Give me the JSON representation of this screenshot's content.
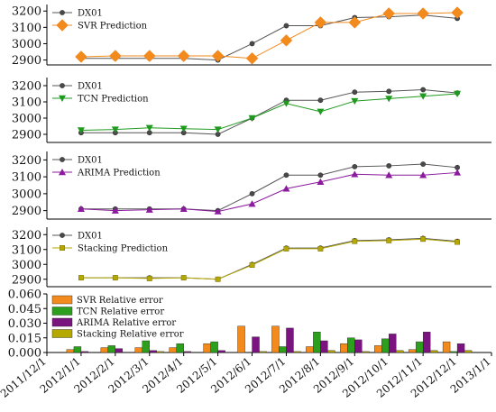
{
  "chart_data": [
    {
      "type": "line",
      "x": [
        "2012/1/1",
        "2012/2/1",
        "2012/3/1",
        "2012/4/1",
        "2012/5/1",
        "2012/6/1",
        "2012/7/1",
        "2012/8/1",
        "2012/9/1",
        "2012/10/1",
        "2012/11/1",
        "2012/12/1"
      ],
      "yticks": [
        "2900",
        "3000",
        "3100",
        "3200"
      ],
      "ylim": [
        2870,
        3240
      ],
      "series": [
        {
          "name": "DX01",
          "color": "#555555",
          "marker": "circle",
          "values": [
            2910,
            2910,
            2910,
            2910,
            2900,
            3000,
            3110,
            3110,
            3160,
            3165,
            3175,
            3155
          ]
        },
        {
          "name": "SVR Prediction",
          "color": "#f28a1e",
          "marker": "diamond",
          "values": [
            2920,
            2925,
            2925,
            2925,
            2925,
            2910,
            3020,
            3130,
            3130,
            3185,
            3185,
            3190
          ]
        }
      ]
    },
    {
      "type": "line",
      "x": [
        "2012/1/1",
        "2012/2/1",
        "2012/3/1",
        "2012/4/1",
        "2012/5/1",
        "2012/6/1",
        "2012/7/1",
        "2012/8/1",
        "2012/9/1",
        "2012/10/1",
        "2012/11/1",
        "2012/12/1"
      ],
      "yticks": [
        "2900",
        "3000",
        "3100",
        "3200"
      ],
      "ylim": [
        2850,
        3250
      ],
      "series": [
        {
          "name": "DX01",
          "color": "#555555",
          "marker": "circle",
          "values": [
            2910,
            2910,
            2910,
            2910,
            2900,
            3000,
            3110,
            3110,
            3160,
            3165,
            3175,
            3155
          ]
        },
        {
          "name": "TCN Prediction",
          "color": "#1f9a1f",
          "marker": "triangle-down",
          "values": [
            2925,
            2930,
            2940,
            2935,
            2930,
            3000,
            3090,
            3040,
            3105,
            3120,
            3135,
            3150
          ]
        }
      ]
    },
    {
      "type": "line",
      "x": [
        "2012/1/1",
        "2012/2/1",
        "2012/3/1",
        "2012/4/1",
        "2012/5/1",
        "2012/6/1",
        "2012/7/1",
        "2012/8/1",
        "2012/9/1",
        "2012/10/1",
        "2012/11/1",
        "2012/12/1"
      ],
      "yticks": [
        "2900",
        "3000",
        "3100",
        "3200"
      ],
      "ylim": [
        2850,
        3250
      ],
      "series": [
        {
          "name": "DX01",
          "color": "#555555",
          "marker": "circle",
          "values": [
            2910,
            2910,
            2910,
            2910,
            2900,
            3000,
            3110,
            3110,
            3160,
            3165,
            3175,
            3155
          ]
        },
        {
          "name": "ARIMA Prediction",
          "color": "#8b1a9e",
          "marker": "triangle-up",
          "values": [
            2910,
            2900,
            2905,
            2910,
            2895,
            2940,
            3030,
            3070,
            3115,
            3110,
            3110,
            3125
          ]
        }
      ]
    },
    {
      "type": "line",
      "x": [
        "2012/1/1",
        "2012/2/1",
        "2012/3/1",
        "2012/4/1",
        "2012/5/1",
        "2012/6/1",
        "2012/7/1",
        "2012/8/1",
        "2012/9/1",
        "2012/10/1",
        "2012/11/1",
        "2012/12/1"
      ],
      "yticks": [
        "2900",
        "3000",
        "3100",
        "3200"
      ],
      "ylim": [
        2850,
        3250
      ],
      "series": [
        {
          "name": "DX01",
          "color": "#555555",
          "marker": "circle",
          "values": [
            2910,
            2910,
            2910,
            2910,
            2900,
            3000,
            3110,
            3110,
            3160,
            3165,
            3175,
            3155
          ]
        },
        {
          "name": "Stacking Prediction",
          "color": "#b5a800",
          "marker": "square",
          "values": [
            2910,
            2910,
            2905,
            2910,
            2900,
            2995,
            3105,
            3105,
            3155,
            3160,
            3170,
            3150
          ]
        }
      ]
    },
    {
      "type": "bar",
      "categories": [
        "2012/1/1",
        "2012/2/1",
        "2012/3/1",
        "2012/4/1",
        "2012/5/1",
        "2012/6/1",
        "2012/7/1",
        "2012/8/1",
        "2012/9/1",
        "2012/10/1",
        "2012/11/1",
        "2012/12/1"
      ],
      "yticks": [
        "0.000",
        "0.015",
        "0.030",
        "0.045",
        "0.060"
      ],
      "ylim": [
        0,
        0.06
      ],
      "xticks": [
        "2011/12/1",
        "2012/1/1",
        "2012/2/1",
        "2012/3/1",
        "2012/4/1",
        "2012/5/1",
        "2012/6/1",
        "2012/7/1",
        "2012/8/1",
        "2012/9/1",
        "2012/10/1",
        "2012/11/1",
        "2012/12/1",
        "2013/1/1"
      ],
      "series": [
        {
          "name": "SVR Relative error",
          "color": "#f28a1e",
          "values": [
            0.003,
            0.005,
            0.005,
            0.005,
            0.009,
            0.027,
            0.027,
            0.006,
            0.009,
            0.007,
            0.003,
            0.011
          ]
        },
        {
          "name": "TCN Relative error",
          "color": "#2e9e1e",
          "values": [
            0.006,
            0.007,
            0.012,
            0.009,
            0.011,
            0.0,
            0.006,
            0.021,
            0.015,
            0.014,
            0.011,
            0.001
          ]
        },
        {
          "name": "ARIMA Relative error",
          "color": "#7a147f",
          "values": [
            0.001,
            0.004,
            0.002,
            0.001,
            0.002,
            0.016,
            0.025,
            0.012,
            0.013,
            0.019,
            0.021,
            0.009
          ]
        },
        {
          "name": "Stacking Relative error",
          "color": "#b5a800",
          "values": [
            0.0,
            0.0,
            0.001,
            0.0,
            0.0,
            0.001,
            0.001,
            0.002,
            0.001,
            0.002,
            0.002,
            0.002
          ]
        }
      ]
    }
  ]
}
